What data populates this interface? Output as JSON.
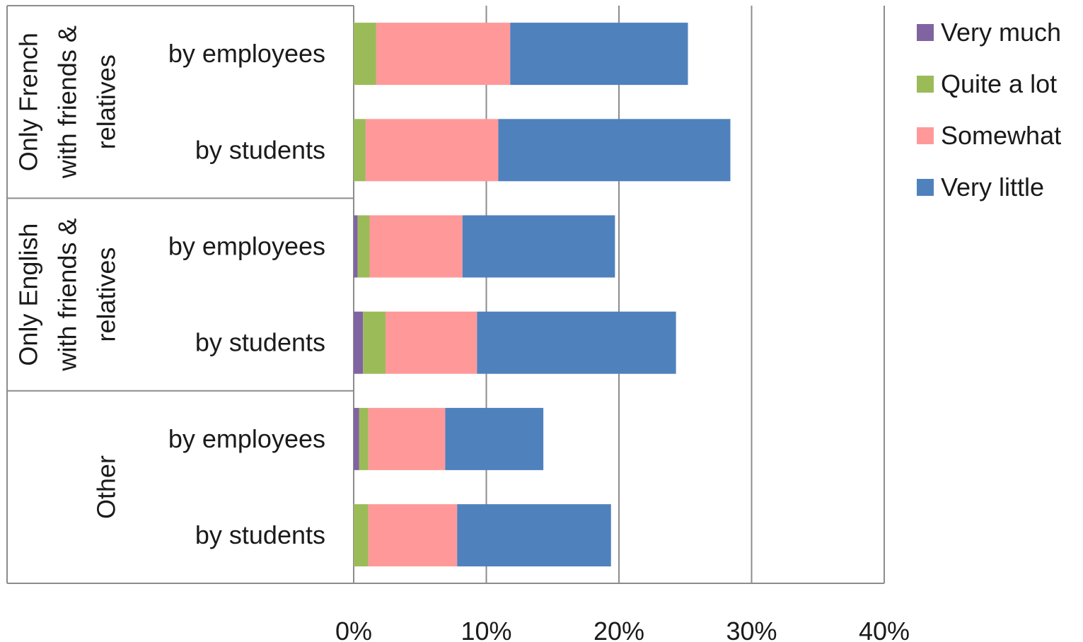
{
  "chart_data": {
    "type": "bar",
    "orientation": "horizontal",
    "stacked": true,
    "groups": [
      {
        "label_lines": [
          "Only  French",
          "with friends &",
          "relatives"
        ],
        "categories": [
          "by employees",
          "by students"
        ]
      },
      {
        "label_lines": [
          "Only English",
          "with friends &",
          "relatives"
        ],
        "categories": [
          "by employees",
          "by students"
        ]
      },
      {
        "label_lines": [
          "Other"
        ],
        "categories": [
          "by employees",
          "by students"
        ]
      }
    ],
    "categories": [
      "by employees",
      "by students",
      "by employees",
      "by students",
      "by employees",
      "by students"
    ],
    "series": [
      {
        "name": "Very much",
        "color": "#8064a2",
        "values": [
          0.0,
          0.0,
          0.3,
          0.7,
          0.4,
          0.0
        ]
      },
      {
        "name": "Quite a lot",
        "color": "#9bbb59",
        "values": [
          1.7,
          0.9,
          0.9,
          1.7,
          0.7,
          1.1
        ]
      },
      {
        "name": "Somewhat",
        "color": "#ff9999",
        "values": [
          10.1,
          10.0,
          7.0,
          6.9,
          5.8,
          6.7
        ]
      },
      {
        "name": "Very little",
        "color": "#4f81bd",
        "values": [
          13.4,
          17.5,
          11.5,
          15.0,
          7.4,
          11.6
        ]
      }
    ],
    "xlim": [
      0,
      40
    ],
    "xticks": [
      "0%",
      "10%",
      "20%",
      "30%",
      "40%"
    ],
    "grid": true,
    "legend": "right",
    "title": "",
    "xlabel": "",
    "ylabel": ""
  }
}
